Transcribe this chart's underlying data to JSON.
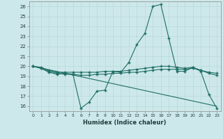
{
  "title": "",
  "xlabel": "Humidex (Indice chaleur)",
  "xlim": [
    -0.5,
    23.5
  ],
  "ylim": [
    15.5,
    26.5
  ],
  "yticks": [
    16,
    17,
    18,
    19,
    20,
    21,
    22,
    23,
    24,
    25,
    26
  ],
  "xticks": [
    0,
    1,
    2,
    3,
    4,
    5,
    6,
    7,
    8,
    9,
    10,
    11,
    12,
    13,
    14,
    15,
    16,
    17,
    18,
    19,
    20,
    21,
    22,
    23
  ],
  "bg_color": "#cde8ea",
  "line_color": "#1e6e65",
  "grid_color": "#b8d8da",
  "series": [
    {
      "x": [
        0,
        1,
        2,
        3,
        4,
        5,
        6,
        7,
        8,
        9,
        10,
        11,
        12,
        13,
        14,
        15,
        16,
        17,
        18,
        19,
        20,
        21,
        22,
        23
      ],
      "y": [
        20.0,
        19.8,
        19.4,
        19.2,
        19.3,
        19.2,
        15.8,
        16.4,
        17.5,
        17.6,
        19.5,
        19.4,
        20.4,
        22.2,
        23.3,
        26.0,
        26.2,
        22.8,
        19.5,
        19.5,
        19.9,
        19.5,
        17.2,
        15.8
      ]
    },
    {
      "x": [
        0,
        1,
        2,
        3,
        4,
        5,
        6,
        7,
        8,
        9,
        10,
        11,
        12,
        13,
        14,
        15,
        16,
        17,
        18,
        19,
        20,
        21,
        22,
        23
      ],
      "y": [
        20.0,
        19.9,
        19.6,
        19.4,
        19.4,
        19.4,
        19.4,
        19.4,
        19.4,
        19.5,
        19.5,
        19.5,
        19.6,
        19.7,
        19.8,
        19.9,
        20.0,
        20.0,
        19.9,
        19.8,
        19.9,
        19.6,
        19.4,
        19.3
      ]
    },
    {
      "x": [
        0,
        1,
        2,
        3,
        4,
        5,
        6,
        7,
        8,
        9,
        10,
        11,
        12,
        13,
        14,
        15,
        16,
        17,
        18,
        19,
        20,
        21,
        22,
        23
      ],
      "y": [
        20.0,
        19.8,
        19.5,
        19.3,
        19.2,
        19.2,
        19.1,
        19.1,
        19.2,
        19.2,
        19.3,
        19.3,
        19.4,
        19.4,
        19.5,
        19.6,
        19.7,
        19.7,
        19.7,
        19.7,
        19.8,
        19.6,
        19.3,
        19.1
      ]
    },
    {
      "x": [
        0,
        23
      ],
      "y": [
        20.0,
        16.0
      ]
    }
  ]
}
